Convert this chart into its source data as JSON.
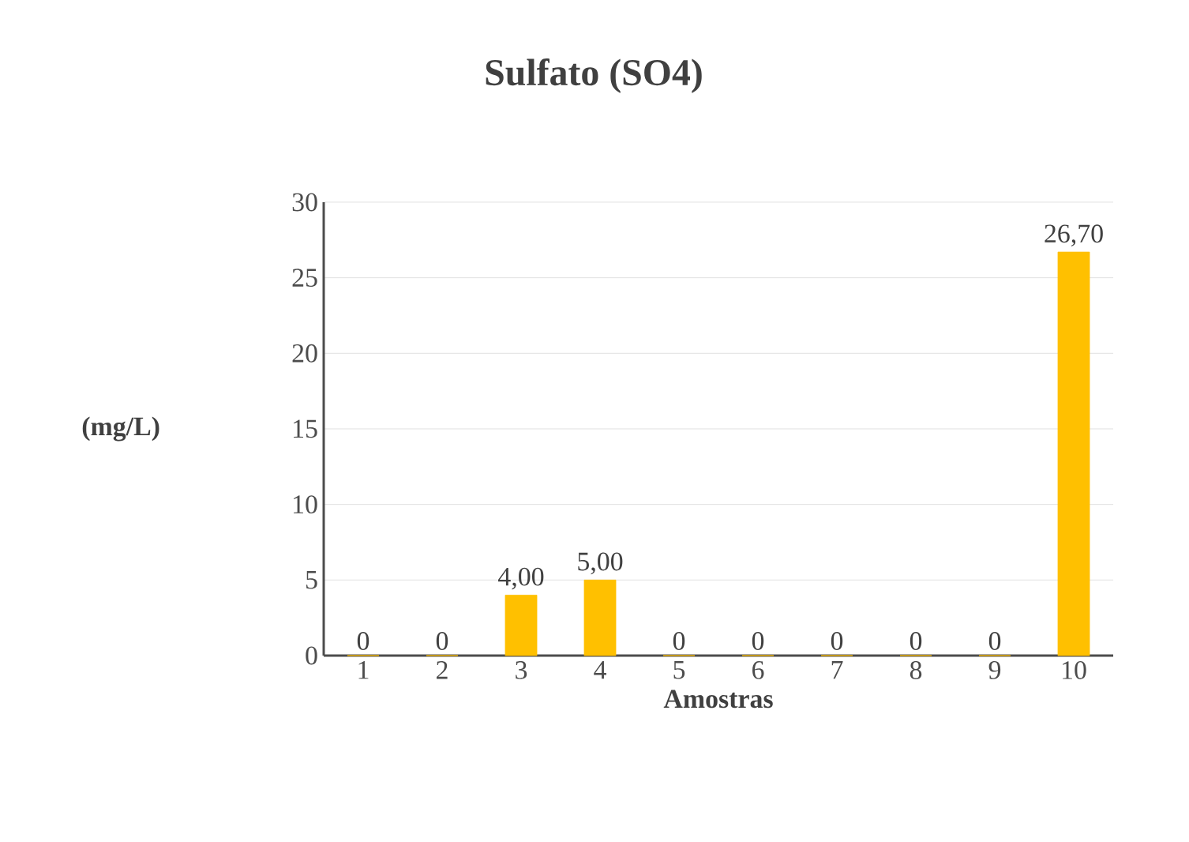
{
  "chart_data": {
    "type": "bar",
    "title": "Sulfato (SO4)",
    "xlabel": "Amostras",
    "ylabel": "(mg/L)",
    "categories": [
      "1",
      "2",
      "3",
      "4",
      "5",
      "6",
      "7",
      "8",
      "9",
      "10"
    ],
    "values": [
      0,
      0,
      4,
      5,
      0,
      0,
      0,
      0,
      0,
      26.7
    ],
    "value_labels": [
      "0",
      "0",
      "4,00",
      "5,00",
      "0",
      "0",
      "0",
      "0",
      "0",
      "26,70"
    ],
    "color": "#ffc000",
    "ylim": [
      0,
      30
    ],
    "yticks": [
      0,
      5,
      10,
      15,
      20,
      25,
      30
    ],
    "grid": "y"
  }
}
